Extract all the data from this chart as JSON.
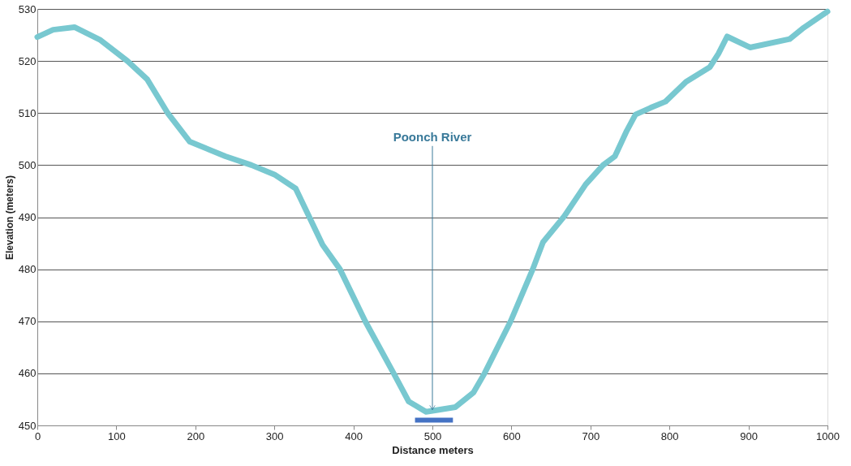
{
  "chart_data": {
    "type": "line",
    "xlabel": "Distance meters",
    "ylabel": "Elevation  (meters)",
    "xlim": [
      0,
      1000
    ],
    "xticks": [
      0,
      100,
      200,
      300,
      400,
      500,
      600,
      700,
      800,
      900,
      1000
    ],
    "ylim": [
      450,
      530
    ],
    "yticks": [
      450,
      460,
      470,
      480,
      490,
      500,
      510,
      520,
      530
    ],
    "grid": "y",
    "marker": "none",
    "line_style": "solid",
    "series": [
      {
        "color": "#78c8d0",
        "x": [
          0,
          20,
          47,
          80,
          114,
          139,
          165,
          193,
          238,
          271,
          300,
          327,
          361,
          383,
          415,
          451,
          470,
          492,
          529,
          552,
          566,
          599,
          627,
          640,
          667,
          694,
          716,
          731,
          746,
          757,
          776,
          795,
          821,
          851,
          862,
          873,
          902,
          952,
          970,
          1000
        ],
        "values": [
          524.6,
          526,
          526.5,
          524,
          520,
          516.5,
          510,
          504.5,
          501.7,
          500,
          498.2,
          495.5,
          484.7,
          480,
          470,
          460,
          454.6,
          452.6,
          453.5,
          456.3,
          460,
          470,
          480,
          485.2,
          490.2,
          496.3,
          500,
          501.7,
          506.6,
          509.7,
          511,
          512.2,
          516,
          518.8,
          521.4,
          524.7,
          522.6,
          524.2,
          526.4,
          529.5
        ]
      },
      {
        "type": "line",
        "color": "#4472c4",
        "x": [
          478,
          526
        ],
        "values": [
          451,
          451
        ]
      }
    ],
    "annotations": [
      {
        "text": "Poonch River",
        "x": 500,
        "y": 453
      }
    ]
  }
}
